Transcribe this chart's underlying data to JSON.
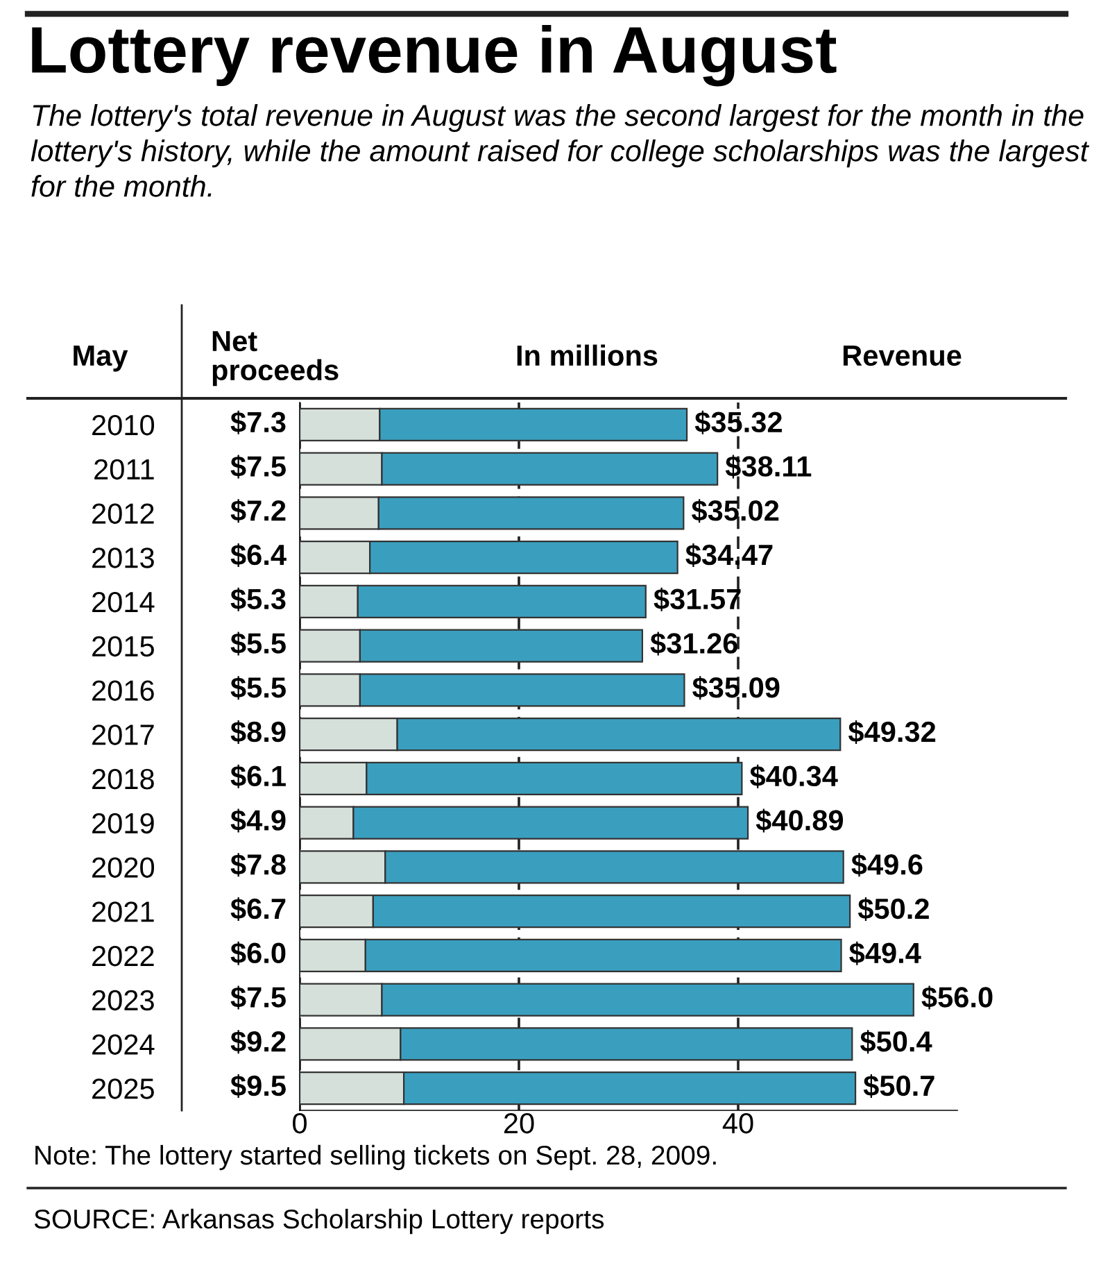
{
  "chart_data": {
    "type": "bar",
    "orientation": "horizontal",
    "title": "Lottery revenue in August",
    "subtitle": "The lottery's total revenue in August was the second largest for the month in the lottery's history, while the amount raised for college scholarships was the largest for the month.",
    "categories": [
      "2010",
      "2011",
      "2012",
      "2013",
      "2014",
      "2015",
      "2016",
      "2017",
      "2018",
      "2019",
      "2020",
      "2021",
      "2022",
      "2023",
      "2024",
      "2025"
    ],
    "series": [
      {
        "color": "#d6e0da",
        "values": [
          7.3,
          7.5,
          7.2,
          6.4,
          5.3,
          5.5,
          5.5,
          8.9,
          6.1,
          4.9,
          7.8,
          6.7,
          6.0,
          7.5,
          9.2,
          9.5
        ],
        "value_labels": [
          "$7.3",
          "$7.5",
          "$7.2",
          "$6.4",
          "$5.3",
          "$5.5",
          "$5.5",
          "$8.9",
          "$6.1",
          "$4.9",
          "$7.8",
          "$6.7",
          "$6.0",
          "$7.5",
          "$9.2",
          "$9.5"
        ]
      },
      {
        "color": "#3a9fbf",
        "values": [
          28.02,
          30.61,
          27.82,
          28.07,
          26.27,
          25.76,
          29.59,
          40.42,
          34.24,
          35.99,
          41.8,
          43.5,
          43.4,
          48.5,
          41.2,
          41.2
        ]
      }
    ],
    "stacked": true,
    "totals": [
      "$35.32",
      "$38.11",
      "$35.02",
      "$34.47",
      "$31.57",
      "$31.26",
      "$35.09",
      "$49.32",
      "$40.34",
      "$40.89",
      "$49.6",
      "$50.2",
      "$49.4",
      "$56.0",
      "$50.4",
      "$50.7"
    ],
    "xlim": [
      0,
      60
    ],
    "xticks": [
      0,
      20,
      40
    ],
    "grid": "x",
    "legend": false,
    "annotations": [
      "May",
      "Net\nproceeds",
      "In millions",
      "Revenue",
      "Note: The lottery started selling tickets on Sept. 28, 2009.",
      "SOURCE: Arkansas Scholarship Lottery reports"
    ]
  }
}
